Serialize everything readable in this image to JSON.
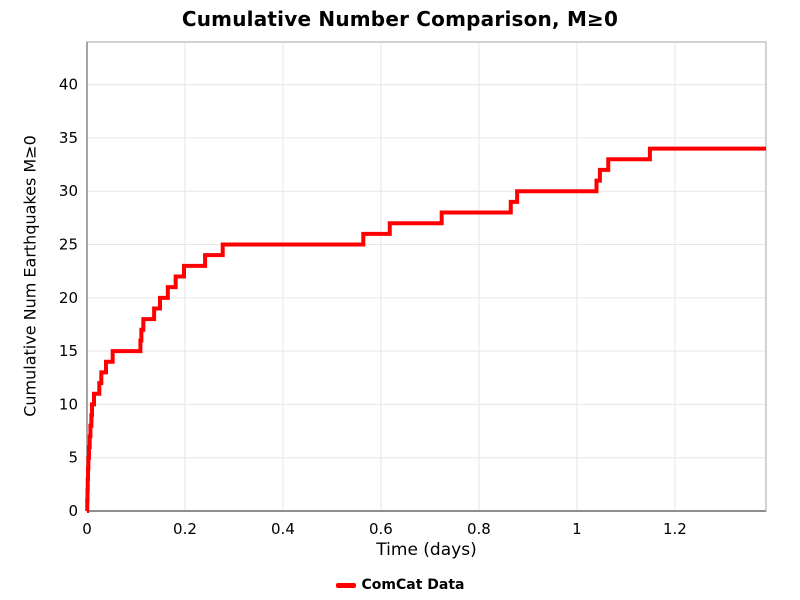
{
  "chart_data": {
    "type": "line",
    "step": "post",
    "title": "Cumulative Number Comparison, M≥0",
    "xlabel": "Time (days)",
    "ylabel": "Cumulative Num Earthquakes M≥0",
    "legend": [
      {
        "label": "ComCat Data",
        "color": "#FF0000"
      }
    ],
    "legend_position": "bottom-center",
    "grid": true,
    "xlim": [
      0,
      1.386
    ],
    "ylim": [
      0,
      44
    ],
    "xticks": {
      "values": [
        0,
        0.2,
        0.4,
        0.6,
        0.8,
        1.0,
        1.2
      ],
      "labels": [
        "0",
        "0.2",
        "0.4",
        "0.6",
        "0.8",
        "1",
        "1.2"
      ]
    },
    "yticks": {
      "values": [
        0,
        5,
        10,
        15,
        20,
        25,
        30,
        35,
        40
      ],
      "labels": [
        "0",
        "5",
        "10",
        "15",
        "20",
        "25",
        "30",
        "35",
        "40"
      ]
    },
    "series": [
      {
        "name": "ComCat Data",
        "color": "#FF0000",
        "line_width": 4,
        "x": [
          0,
          0.0005,
          0.001,
          0.0015,
          0.0021,
          0.0028,
          0.004,
          0.0055,
          0.007,
          0.009,
          0.0102,
          0.0143,
          0.0251,
          0.0292,
          0.0388,
          0.0524,
          0.109,
          0.111,
          0.115,
          0.137,
          0.149,
          0.165,
          0.181,
          0.198,
          0.241,
          0.277,
          0.564,
          0.618,
          0.724,
          0.865,
          0.878,
          1.04,
          1.047,
          1.064,
          1.149
        ],
        "y": [
          0,
          1,
          2,
          3,
          4,
          5,
          6,
          7,
          8,
          9,
          10,
          11,
          12,
          13,
          14,
          15,
          16,
          17,
          18,
          19,
          20,
          21,
          22,
          23,
          24,
          25,
          26,
          27,
          28,
          29,
          30,
          31,
          32,
          33,
          34
        ],
        "extend_to_x": 1.386,
        "final_value": 34,
        "total_events": 34
      }
    ]
  },
  "colors": {
    "background": "#FFFFFF",
    "line": "#FF0000",
    "grid": "#E6E6E6",
    "spine": "#BBBBBB",
    "spine_dark": "#8F8F8F",
    "text": "#000000"
  }
}
